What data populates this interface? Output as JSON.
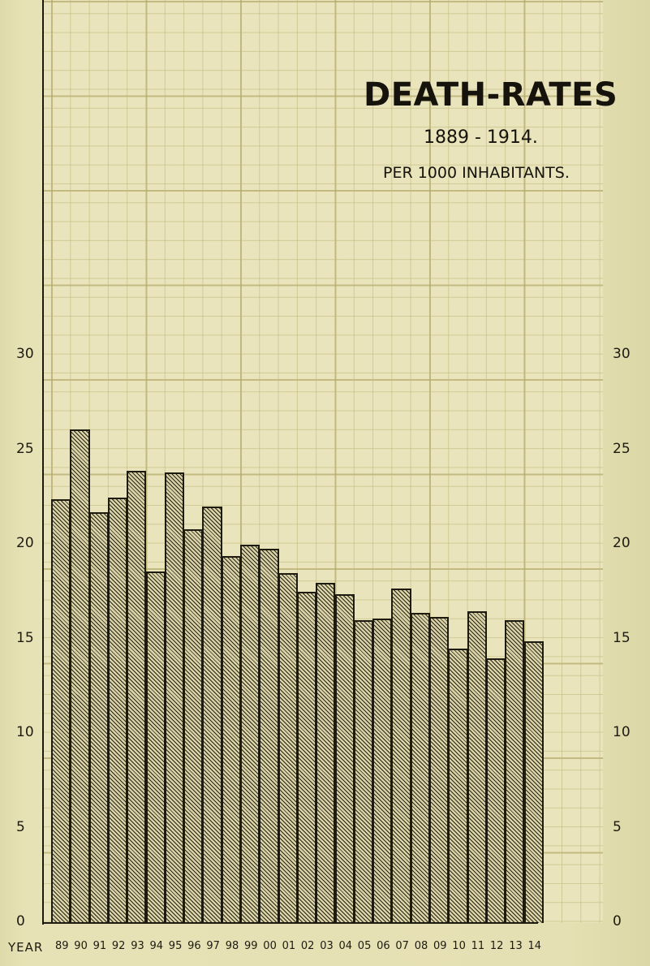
{
  "chart_data": {
    "type": "bar",
    "title": "DEATH-RATES",
    "subtitle": "1889 - 1914.",
    "unit_label": "PER 1000 INHABITANTS.",
    "xlabel": "YEAR",
    "ylabel": "",
    "ylim": [
      0,
      30
    ],
    "grid": true,
    "legend": null,
    "yticks": [
      "0",
      "5",
      "10",
      "15",
      "20",
      "25",
      "30"
    ],
    "categories": [
      "89",
      "90",
      "91",
      "92",
      "93",
      "94",
      "95",
      "96",
      "97",
      "98",
      "99",
      "00",
      "01",
      "02",
      "03",
      "04",
      "05",
      "06",
      "07",
      "08",
      "09",
      "10",
      "11",
      "12",
      "13",
      "14"
    ],
    "years": [
      1889,
      1890,
      1891,
      1892,
      1893,
      1894,
      1895,
      1896,
      1897,
      1898,
      1899,
      1900,
      1901,
      1902,
      1903,
      1904,
      1905,
      1906,
      1907,
      1908,
      1909,
      1910,
      1911,
      1912,
      1913,
      1914
    ],
    "values": [
      22.4,
      26.1,
      21.7,
      22.5,
      23.9,
      18.6,
      23.8,
      20.8,
      22.0,
      19.4,
      20.0,
      19.8,
      18.5,
      17.5,
      18.0,
      17.4,
      16.0,
      16.1,
      17.7,
      16.4,
      16.2,
      14.5,
      16.5,
      14.0,
      16.0,
      14.9
    ]
  },
  "labels": {
    "title": "DEATH-RATES",
    "subtitle": "1889 - 1914.",
    "unit": "PER 1000 INHABITANTS.",
    "year": "YEAR"
  },
  "colors": {
    "paper": "#e4dfb2",
    "grid": "#c9bf8a",
    "ink": "#1d1a10",
    "hatch_fill": "#b9b38b"
  }
}
